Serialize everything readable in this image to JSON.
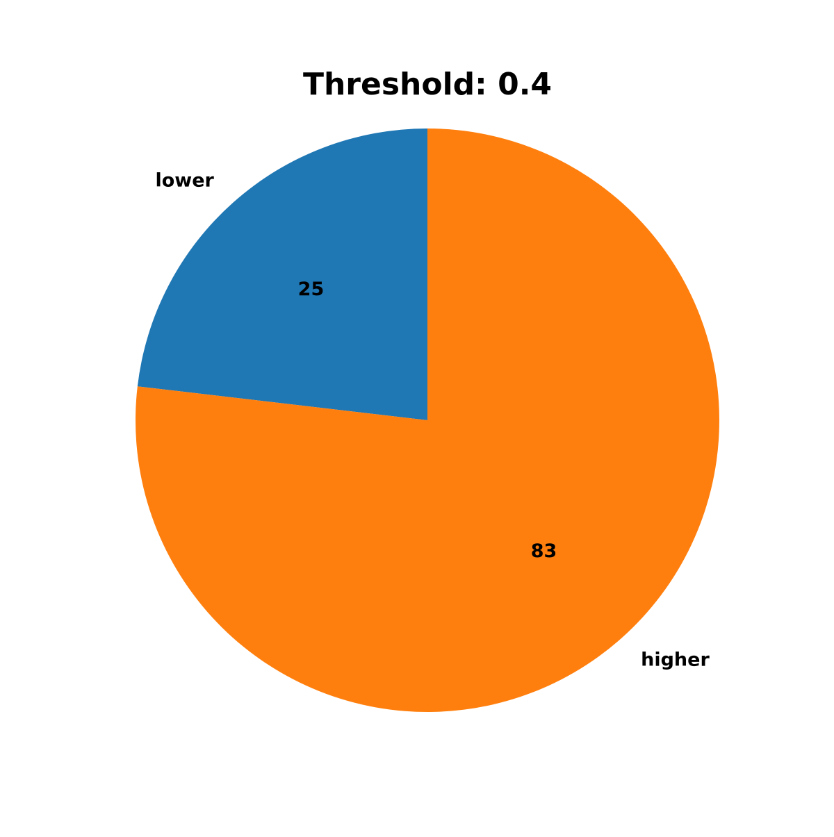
{
  "chart_data": {
    "type": "pie",
    "title": "Threshold: 0.4",
    "slices": [
      {
        "label": "lower",
        "value": 25,
        "color": "#1f77b4",
        "value_label": "25"
      },
      {
        "label": "higher",
        "value": 83,
        "color": "#ff7f0e",
        "value_label": "83"
      }
    ],
    "start_angle_deg": 90,
    "direction": "counterclockwise"
  }
}
